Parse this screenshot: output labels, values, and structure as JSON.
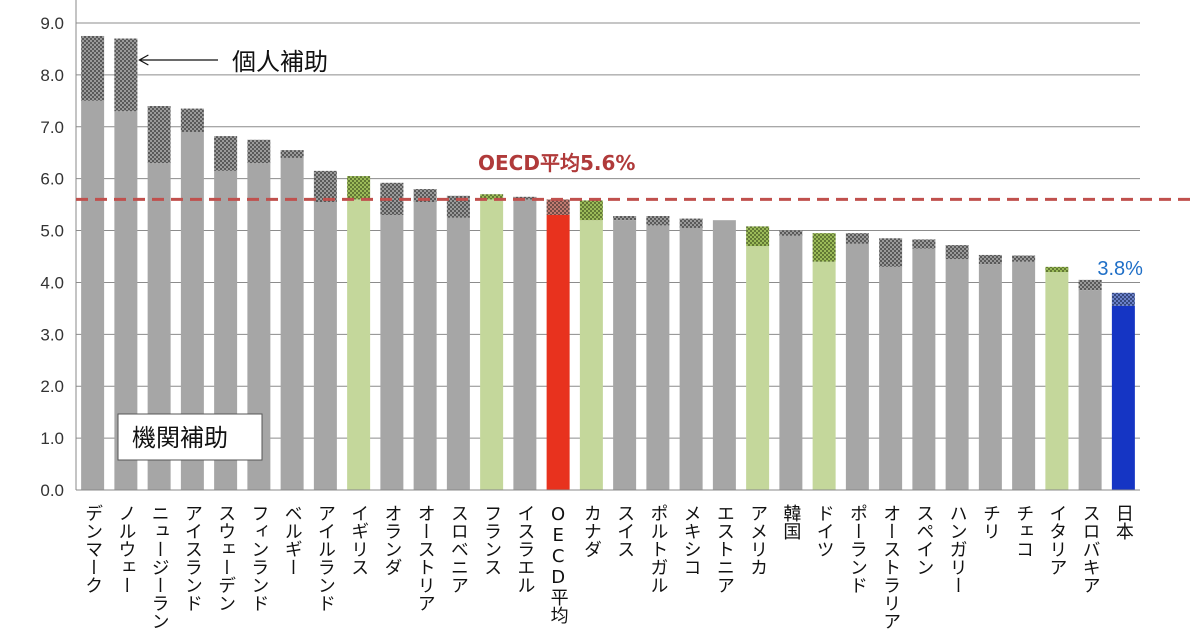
{
  "chart_data": {
    "type": "bar",
    "stacked": true,
    "ylim": [
      0,
      9
    ],
    "ytick_step": 1,
    "ytick_labels": [
      "0.0",
      "1.0",
      "2.0",
      "3.0",
      "4.0",
      "5.0",
      "6.0",
      "7.0",
      "8.0",
      "9.0"
    ],
    "grid": true,
    "categories": [
      "デンマーク",
      "ノルウェー",
      "ニュージーランド",
      "アイスランド",
      "スウェーデン",
      "フィンランド",
      "ベルギー",
      "アイルランド",
      "イギリス",
      "オランダ",
      "オーストリア",
      "スロベニア",
      "フランス",
      "イスラエル",
      "OECD平均",
      "カナダ",
      "スイス",
      "ポルトガル",
      "メキシコ",
      "エストニア",
      "アメリカ",
      "韓国",
      "ドイツ",
      "ポーランド",
      "オーストラリア",
      "スペイン",
      "ハンガリー",
      "チリ",
      "チェコ",
      "イタリア",
      "スロバキア",
      "日本"
    ],
    "display_labels": [
      "デンマーク",
      "ノルウェー",
      "ニュージーラン",
      "アイスランド",
      "スウェーデン",
      "フィンランド",
      "ベルギー",
      "アイルランド",
      "イギリス",
      "オランダ",
      "オーストリア",
      "スロベニア",
      "フランス",
      "イスラエル",
      "OECD平均",
      "カナダ",
      "スイス",
      "ポルトガル",
      "メキシコ",
      "エストニア",
      "アメリカ",
      "韓国",
      "ドイツ",
      "ポーランド",
      "オーストラリア",
      "スペイン",
      "ハンガリー",
      "チリ",
      "チェコ",
      "イタリア",
      "スロバキア",
      "日本"
    ],
    "series": [
      {
        "name": "機関補助",
        "values": [
          7.5,
          7.3,
          6.3,
          6.9,
          6.15,
          6.3,
          6.4,
          5.55,
          5.6,
          5.3,
          5.55,
          5.25,
          5.6,
          5.6,
          5.3,
          5.2,
          5.2,
          5.1,
          5.05,
          5.2,
          4.7,
          4.9,
          4.4,
          4.75,
          4.3,
          4.65,
          4.45,
          4.35,
          4.4,
          4.2,
          3.85,
          3.55
        ]
      },
      {
        "name": "個人補助",
        "values": [
          1.25,
          1.4,
          1.1,
          0.45,
          0.67,
          0.45,
          0.15,
          0.6,
          0.45,
          0.62,
          0.25,
          0.42,
          0.1,
          0.05,
          0.3,
          0.38,
          0.08,
          0.18,
          0.18,
          0.0,
          0.38,
          0.1,
          0.55,
          0.2,
          0.55,
          0.18,
          0.27,
          0.18,
          0.12,
          0.1,
          0.2,
          0.25
        ]
      }
    ],
    "bar_colors": [
      "gray",
      "gray",
      "gray",
      "gray",
      "gray",
      "gray",
      "gray",
      "gray",
      "green",
      "gray",
      "gray",
      "gray",
      "green",
      "gray",
      "red",
      "green",
      "gray",
      "gray",
      "gray",
      "gray",
      "green",
      "gray",
      "green",
      "gray",
      "gray",
      "gray",
      "gray",
      "gray",
      "gray",
      "green",
      "gray",
      "blue"
    ],
    "colors": {
      "gray": "#a6a6a6",
      "green": "#c4d79b",
      "red": "#e8321e",
      "blue": "#1535c4",
      "ref_line": "#c0504d",
      "japan_label": "#1f6fc7"
    },
    "reference_line": {
      "value": 5.6,
      "label": "OECD平均5.6%"
    },
    "japan_label": "3.8%",
    "annotations": {
      "individual": "個人補助",
      "institutional": "機関補助"
    }
  }
}
